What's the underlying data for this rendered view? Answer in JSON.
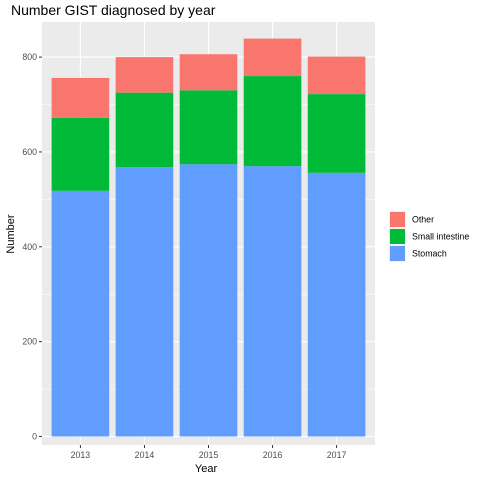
{
  "chart_data": {
    "type": "bar",
    "stacked": true,
    "title": "Number GIST diagnosed by year",
    "xlabel": "Year",
    "ylabel": "Number",
    "categories": [
      "2013",
      "2014",
      "2015",
      "2016",
      "2017"
    ],
    "series": [
      {
        "name": "Stomach",
        "color": "#619CFF",
        "values": [
          518,
          568,
          574,
          570,
          556
        ]
      },
      {
        "name": "Small intestine",
        "color": "#00BA38",
        "values": [
          154,
          157,
          156,
          190,
          166
        ]
      },
      {
        "name": "Other",
        "color": "#F8766D",
        "values": [
          84,
          75,
          76,
          79,
          79
        ]
      }
    ],
    "legend_order": [
      "Other",
      "Small intestine",
      "Stomach"
    ],
    "ylim": [
      -18,
      874
    ],
    "yticks": [
      0,
      200,
      400,
      600,
      800
    ],
    "grid": true,
    "legend_position": "right",
    "panel_background": "#EBEBEB",
    "grid_color": "#FFFFFF"
  }
}
